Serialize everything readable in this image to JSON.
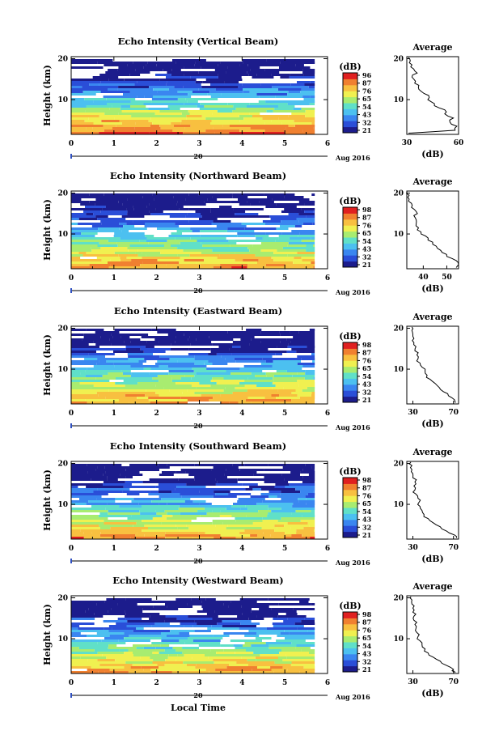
{
  "chart_data": [
    {
      "type": "heatmap",
      "title": "Echo Intensity (Vertical Beam)",
      "ylabel": "Height (km)",
      "xlim": [
        0,
        6
      ],
      "ylim": [
        1.5,
        20.5
      ],
      "xticks": [
        "0",
        "1",
        "2",
        "3",
        "4",
        "5",
        "6"
      ],
      "yticks": [
        "10",
        "20"
      ],
      "date_day": "20",
      "date_label": "Aug 2016",
      "data_end_hour": 5.7,
      "colorbar": {
        "unit": "(dB)",
        "ticks": [
          "96",
          "87",
          "76",
          "65",
          "54",
          "43",
          "32",
          "21"
        ]
      },
      "profile": {
        "title": "Average",
        "xlabel": "(dB)",
        "xticks": [
          "30",
          "60"
        ],
        "xlim": [
          30,
          60
        ],
        "points": [
          [
            31,
            1.8
          ],
          [
            58,
            2.5
          ],
          [
            59,
            3.5
          ],
          [
            55,
            4.5
          ],
          [
            57,
            5.5
          ],
          [
            52,
            6.5
          ],
          [
            52,
            7.5
          ],
          [
            46,
            8.5
          ],
          [
            44,
            9.5
          ],
          [
            43,
            10.5
          ],
          [
            40,
            11.5
          ],
          [
            37,
            12.5
          ],
          [
            37,
            13.5
          ],
          [
            35,
            14.5
          ],
          [
            33,
            15.5
          ],
          [
            36,
            16.5
          ],
          [
            34,
            17.5
          ],
          [
            33,
            18.5
          ],
          [
            32,
            19.5
          ],
          [
            31,
            20.3
          ]
        ]
      }
    },
    {
      "type": "heatmap",
      "title": "Echo Intensity (Northward Beam)",
      "ylabel": "Height (km)",
      "xlim": [
        0,
        6
      ],
      "ylim": [
        1.5,
        20.5
      ],
      "xticks": [
        "0",
        "1",
        "2",
        "3",
        "4",
        "5",
        "6"
      ],
      "yticks": [
        "10",
        "20"
      ],
      "date_day": "20",
      "date_label": "Aug 2016",
      "data_end_hour": 5.7,
      "colorbar": {
        "unit": "(dB)",
        "ticks": [
          "98",
          "87",
          "76",
          "65",
          "54",
          "43",
          "32",
          "21"
        ]
      },
      "profile": {
        "title": "Average",
        "xlabel": "(dB)",
        "xticks": [
          "40",
          "50"
        ],
        "xlim": [
          33,
          55
        ],
        "points": [
          [
            54,
            1.8
          ],
          [
            55,
            2.5
          ],
          [
            54,
            3.5
          ],
          [
            50,
            4.5
          ],
          [
            48,
            5.5
          ],
          [
            46,
            6.5
          ],
          [
            44,
            7.5
          ],
          [
            42,
            8.5
          ],
          [
            41,
            9.5
          ],
          [
            39,
            10.5
          ],
          [
            38,
            11.5
          ],
          [
            37,
            12.5
          ],
          [
            37,
            13.5
          ],
          [
            36,
            14.5
          ],
          [
            37,
            15.5
          ],
          [
            35,
            16.5
          ],
          [
            35,
            17.5
          ],
          [
            34,
            18.5
          ],
          [
            34,
            19.5
          ],
          [
            33,
            20.3
          ]
        ]
      }
    },
    {
      "type": "heatmap",
      "title": "Echo Intensity (Eastward Beam)",
      "ylabel": "Height (km)",
      "xlim": [
        0,
        6
      ],
      "ylim": [
        1.5,
        20.5
      ],
      "xticks": [
        "0",
        "1",
        "2",
        "3",
        "4",
        "5",
        "6"
      ],
      "yticks": [
        "10",
        "20"
      ],
      "date_day": "20",
      "date_label": "Aug 2016",
      "data_end_hour": 5.7,
      "colorbar": {
        "unit": "(dB)",
        "ticks": [
          "98",
          "87",
          "76",
          "65",
          "54",
          "43",
          "32",
          "21"
        ]
      },
      "profile": {
        "title": "Average",
        "xlabel": "(dB)",
        "xticks": [
          "30",
          "70"
        ],
        "xlim": [
          24,
          75
        ],
        "points": [
          [
            72,
            1.8
          ],
          [
            71,
            2.5
          ],
          [
            65,
            3.5
          ],
          [
            60,
            4.5
          ],
          [
            56,
            5.5
          ],
          [
            52,
            6.5
          ],
          [
            47,
            7.5
          ],
          [
            44,
            8.5
          ],
          [
            42,
            9.5
          ],
          [
            39,
            10.5
          ],
          [
            37,
            11.5
          ],
          [
            35,
            12.5
          ],
          [
            34,
            13.5
          ],
          [
            32,
            14.5
          ],
          [
            33,
            15.5
          ],
          [
            31,
            16.5
          ],
          [
            31,
            17.5
          ],
          [
            30,
            18.5
          ],
          [
            29,
            19.5
          ],
          [
            29,
            20.3
          ]
        ]
      }
    },
    {
      "type": "heatmap",
      "title": "Echo Intensity (Southward Beam)",
      "ylabel": "Height (km)",
      "xlim": [
        0,
        6
      ],
      "ylim": [
        1.5,
        20.5
      ],
      "xticks": [
        "0",
        "1",
        "2",
        "3",
        "4",
        "5",
        "6"
      ],
      "yticks": [
        "10",
        "20"
      ],
      "date_day": "20",
      "date_label": "Aug 2016",
      "data_end_hour": 5.7,
      "colorbar": {
        "unit": "(dB)",
        "ticks": [
          "98",
          "87",
          "76",
          "65",
          "54",
          "43",
          "32",
          "21"
        ]
      },
      "profile": {
        "title": "Average",
        "xlabel": "(dB)",
        "xticks": [
          "30",
          "70"
        ],
        "xlim": [
          24,
          75
        ],
        "points": [
          [
            73,
            1.8
          ],
          [
            71,
            2.5
          ],
          [
            63,
            3.5
          ],
          [
            57,
            4.5
          ],
          [
            50,
            5.5
          ],
          [
            45,
            6.5
          ],
          [
            41,
            7.5
          ],
          [
            39,
            8.5
          ],
          [
            37,
            9.5
          ],
          [
            36,
            10.5
          ],
          [
            35,
            11.5
          ],
          [
            33,
            12.5
          ],
          [
            32,
            13.5
          ],
          [
            31,
            14.5
          ],
          [
            32,
            15.5
          ],
          [
            30,
            16.5
          ],
          [
            30,
            17.5
          ],
          [
            29,
            18.5
          ],
          [
            29,
            19.5
          ],
          [
            28,
            20.3
          ]
        ]
      }
    },
    {
      "type": "heatmap",
      "title": "Echo Intensity (Westward Beam)",
      "ylabel": "Height (km)",
      "xlim": [
        0,
        6
      ],
      "ylim": [
        1.5,
        20.5
      ],
      "xticks": [
        "0",
        "1",
        "2",
        "3",
        "4",
        "5",
        "6"
      ],
      "yticks": [
        "10",
        "20"
      ],
      "date_day": "20",
      "date_label": "Aug 2016",
      "data_end_hour": 5.7,
      "colorbar": {
        "unit": "(dB)",
        "ticks": [
          "98",
          "87",
          "76",
          "65",
          "54",
          "43",
          "32",
          "21"
        ]
      },
      "profile": {
        "title": "Average",
        "xlabel": "(dB)",
        "xticks": [
          "30",
          "70"
        ],
        "xlim": [
          24,
          75
        ],
        "points": [
          [
            72,
            1.8
          ],
          [
            70,
            2.5
          ],
          [
            63,
            3.5
          ],
          [
            57,
            4.5
          ],
          [
            50,
            5.5
          ],
          [
            45,
            6.5
          ],
          [
            42,
            7.5
          ],
          [
            39,
            8.5
          ],
          [
            37,
            9.5
          ],
          [
            35,
            10.5
          ],
          [
            34,
            11.5
          ],
          [
            33,
            12.5
          ],
          [
            32,
            13.5
          ],
          [
            31,
            14.5
          ],
          [
            31,
            15.5
          ],
          [
            30,
            16.5
          ],
          [
            30,
            17.5
          ],
          [
            29,
            18.5
          ],
          [
            29,
            19.5
          ],
          [
            28,
            20.3
          ]
        ]
      }
    }
  ],
  "footer": {
    "xlabel": "Local Time"
  },
  "colors": {
    "scale": [
      "#1c1c8c",
      "#2a4ed8",
      "#3a86f0",
      "#4cc0f0",
      "#60e0c8",
      "#a8ec70",
      "#f0f050",
      "#f8c040",
      "#f08030",
      "#e02020"
    ]
  }
}
